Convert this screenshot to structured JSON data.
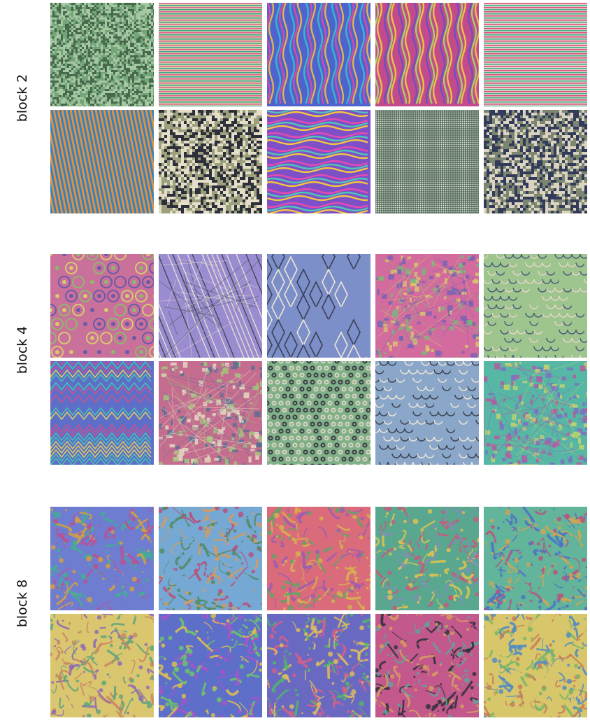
{
  "blocks": [
    {
      "label": "block 2",
      "rows": [
        [
          {
            "pattern": "fine-noise",
            "colors": [
              "#6fa274",
              "#3d5e43",
              "#a6c7a3"
            ]
          },
          {
            "pattern": "horizontal-stripes",
            "colors": [
              "#e2608f",
              "#3fa790",
              "#d8d2a8"
            ]
          },
          {
            "pattern": "wavy-vertical",
            "colors": [
              "#3ab7c7",
              "#d64aa9",
              "#e4b34c",
              "#4f63cf"
            ]
          },
          {
            "pattern": "wavy-vertical",
            "colors": [
              "#6d4fc2",
              "#9fd36a",
              "#e8c248",
              "#c34b8c"
            ]
          },
          {
            "pattern": "horizontal-stripes",
            "colors": [
              "#df4d7e",
              "#48b08f",
              "#e1d7c9"
            ]
          }
        ],
        [
          {
            "pattern": "diagonal-stripes",
            "colors": [
              "#2f84c6",
              "#e98f3a"
            ]
          },
          {
            "pattern": "coarse-noise",
            "colors": [
              "#2d2f3a",
              "#e4ddc7",
              "#9ca07d"
            ]
          },
          {
            "pattern": "wavy-horizontal",
            "colors": [
              "#e64bb1",
              "#4ec8b6",
              "#f0c940",
              "#7d50c8"
            ]
          },
          {
            "pattern": "grid",
            "colors": [
              "#2e4a3a",
              "#e2e7d8"
            ]
          },
          {
            "pattern": "coarse-noise",
            "colors": [
              "#333b5a",
              "#d9d3bf",
              "#7c8570"
            ]
          }
        ]
      ]
    },
    {
      "label": "block 4",
      "rows": [
        [
          {
            "pattern": "blobs",
            "colors": [
              "#6b5aa8",
              "#d7c96f",
              "#8fb86e",
              "#c9709b"
            ]
          },
          {
            "pattern": "diagonal-lines",
            "colors": [
              "#404a55",
              "#e3dfcf",
              "#9b8bd0"
            ]
          },
          {
            "pattern": "diamonds",
            "colors": [
              "#3a3f54",
              "#efe6d7",
              "#7c8fc9"
            ]
          },
          {
            "pattern": "mosaic",
            "colors": [
              "#7a62b4",
              "#d9c66d",
              "#78b87a",
              "#d36b9e"
            ]
          },
          {
            "pattern": "scales",
            "colors": [
              "#4b5f7a",
              "#e3d4c6",
              "#9fc58f"
            ]
          }
        ],
        [
          {
            "pattern": "zigzag",
            "colors": [
              "#cf4f8f",
              "#48c2b0",
              "#d8d060",
              "#5d6fc8"
            ]
          },
          {
            "pattern": "mosaic",
            "colors": [
              "#5c6f94",
              "#e6d8c4",
              "#a3c77d",
              "#c46d8f"
            ]
          },
          {
            "pattern": "dots",
            "colors": [
              "#3c3a44",
              "#dcd3c2",
              "#7fb088"
            ]
          },
          {
            "pattern": "scales",
            "colors": [
              "#3c4452",
              "#ebe5d6",
              "#8aa6c9"
            ]
          },
          {
            "pattern": "mosaic",
            "colors": [
              "#b45da0",
              "#c7d46e",
              "#7b6fc6",
              "#56b7a4"
            ]
          }
        ]
      ]
    },
    {
      "label": "block 8",
      "rows": [
        [
          {
            "pattern": "organic",
            "colors": [
              "#3fb28f",
              "#d8a03d",
              "#c04e8e",
              "#6f7dd0"
            ]
          },
          {
            "pattern": "organic",
            "colors": [
              "#d89a5a",
              "#4f8b5e",
              "#b84c79",
              "#76a8d4"
            ]
          },
          {
            "pattern": "organic",
            "colors": [
              "#5aa66a",
              "#d7b34c",
              "#9a5cb4",
              "#d96b7a"
            ]
          },
          {
            "pattern": "organic",
            "colors": [
              "#7e8fb5",
              "#e2c54d",
              "#c55a7c",
              "#5aa790"
            ]
          },
          {
            "pattern": "organic",
            "colors": [
              "#4d6fc7",
              "#d8a550",
              "#bd4f7f",
              "#62b49a"
            ]
          }
        ],
        [
          {
            "pattern": "organic",
            "colors": [
              "#c88563",
              "#5ba47d",
              "#8a67b7",
              "#d9c66f"
            ]
          },
          {
            "pattern": "organic",
            "colors": [
              "#b350c8",
              "#6ec66a",
              "#e3c24c",
              "#5d6fc8"
            ]
          },
          {
            "pattern": "organic",
            "colors": [
              "#4fb868",
              "#d55f8a",
              "#e0c15a",
              "#6a69c2"
            ]
          },
          {
            "pattern": "organic",
            "colors": [
              "#2d2f3a",
              "#d7a15d",
              "#59a9a0",
              "#c2588c"
            ]
          },
          {
            "pattern": "organic",
            "colors": [
              "#c47a5a",
              "#4c8ac4",
              "#78b468",
              "#d8c66a"
            ]
          }
        ]
      ]
    }
  ]
}
